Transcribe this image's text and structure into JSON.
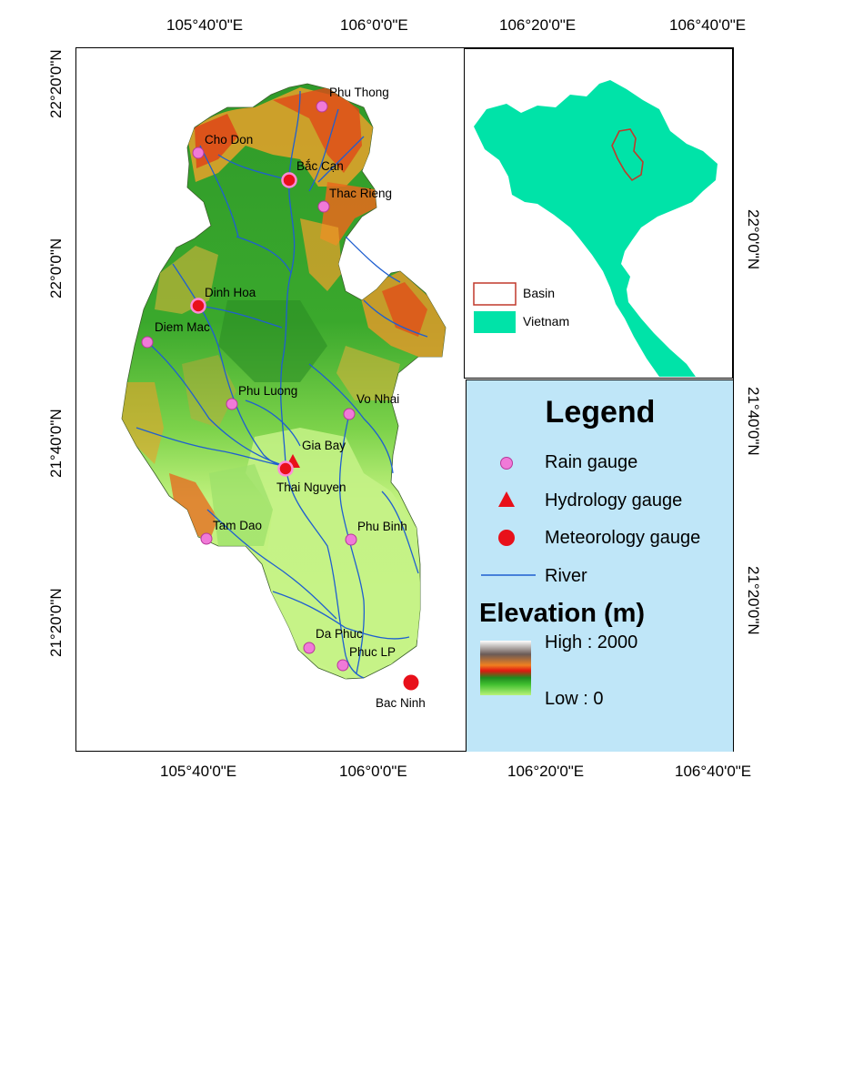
{
  "axes": {
    "top": [
      "105°40'0\"E",
      "106°0'0\"E",
      "106°20'0\"E",
      "106°40'0\"E"
    ],
    "bottom": [
      "105°40'0\"E",
      "106°0'0\"E",
      "106°20'0\"E",
      "106°40'0\"E"
    ],
    "left": [
      "22°20'0\"N",
      "22°0'0\"N",
      "21°40'0\"N",
      "21°20'0\"N"
    ],
    "right": [
      "22°0'0\"N",
      "21°40'0\"N",
      "21°20'0\"N"
    ]
  },
  "stations": [
    {
      "name": "Phu Thong",
      "type": "rain"
    },
    {
      "name": "Cho Don",
      "type": "rain"
    },
    {
      "name": "Bắc Cạn",
      "type": "meteorology"
    },
    {
      "name": "Thac Rieng",
      "type": "rain"
    },
    {
      "name": "Dinh Hoa",
      "type": "meteorology"
    },
    {
      "name": "Diem Mac",
      "type": "rain"
    },
    {
      "name": "Phu Luong",
      "type": "rain"
    },
    {
      "name": "Vo Nhai",
      "type": "rain"
    },
    {
      "name": "Gia Bay",
      "type": "hydrology"
    },
    {
      "name": "Thai Nguyen",
      "type": "meteorology"
    },
    {
      "name": "Tam Dao",
      "type": "rain"
    },
    {
      "name": "Phu Binh",
      "type": "rain"
    },
    {
      "name": "Da Phuc",
      "type": "rain"
    },
    {
      "name": "Phuc LP",
      "type": "rain"
    },
    {
      "name": "Bac Ninh",
      "type": "meteorology"
    }
  ],
  "inset": {
    "basin_label": "Basin",
    "vietnam_label": "Vietnam",
    "vietnam_color": "#00e3a8",
    "basin_outline_color": "#c0392b"
  },
  "legend": {
    "title": "Legend",
    "rain_gauge": "Rain gauge",
    "hydrology_gauge": "Hydrology gauge",
    "meteorology_gauge": "Meteorology gauge",
    "river": "River",
    "elevation_title": "Elevation (m)",
    "high": "High : 2000",
    "low": "Low : 0",
    "colors": {
      "rain": "#f07ad8",
      "hydrology": "#e8101a",
      "meteorology": "#e8101a",
      "river": "#1f5fd0",
      "legend_bg": "#bfe6f8"
    }
  }
}
